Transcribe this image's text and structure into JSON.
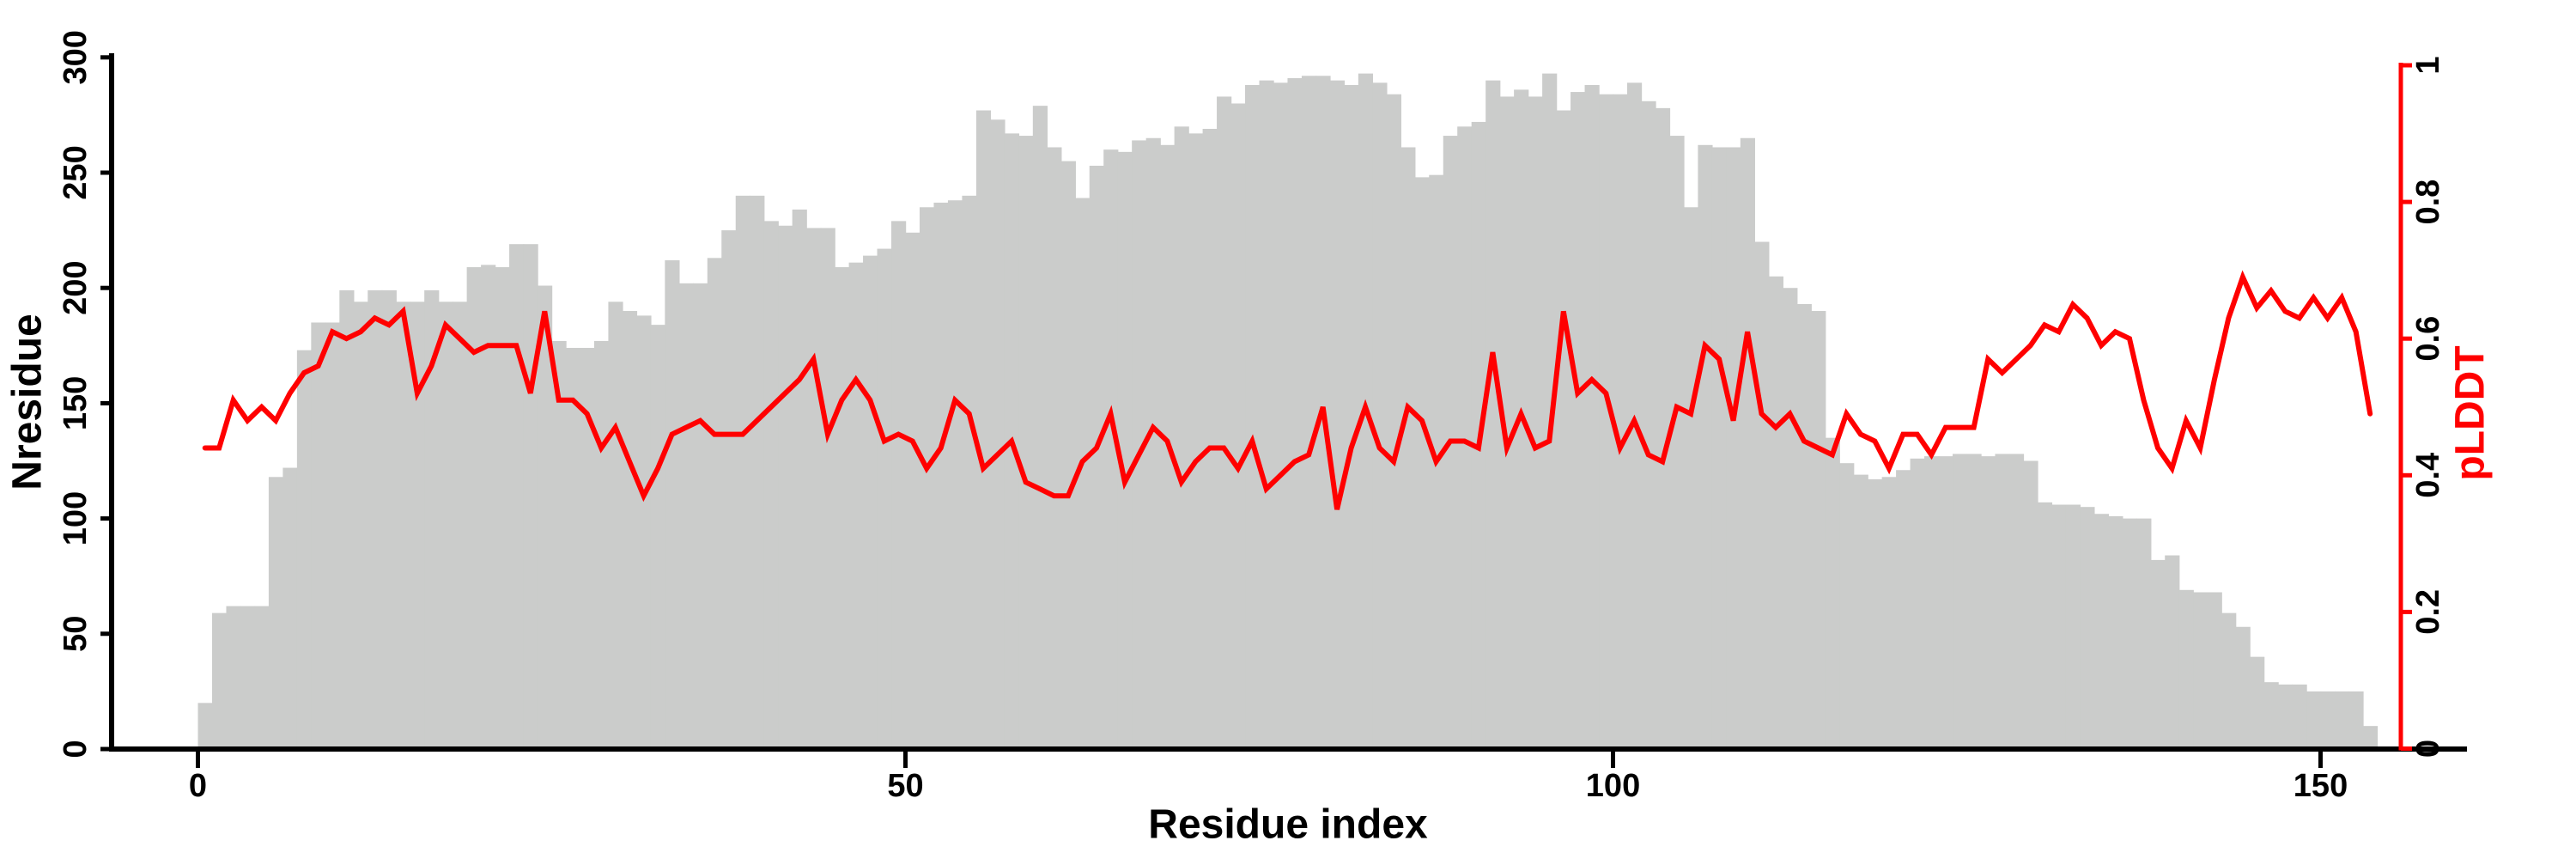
{
  "figure": {
    "xlabel": "Residue index",
    "ylabel_left": "Nresidue",
    "ylabel_right": "pLDDT",
    "colors": {
      "bar": "#cbcccb",
      "line": "#ff0000",
      "axis": "#000000",
      "background": "#ffffff"
    }
  },
  "chart_data": {
    "type": "bar+line",
    "title": "",
    "xlabel": "Residue index",
    "ylabel_left": "Nresidue",
    "ylabel_right": "pLDDT",
    "x_start": 1,
    "n_points": 154,
    "xlim": [
      0,
      154
    ],
    "ylim_left": [
      0,
      300
    ],
    "ylim_right": [
      0,
      1
    ],
    "x_ticks": [
      0,
      50,
      100,
      150
    ],
    "y_ticks_left": [
      0,
      50,
      100,
      150,
      200,
      250,
      300
    ],
    "y_ticks_right": [
      "0",
      "0.2",
      "0.4",
      "0.6",
      "0.8",
      "1"
    ],
    "grid": false,
    "legend": "none",
    "series": [
      {
        "name": "Nresidue",
        "type": "bar",
        "axis": "left",
        "color": "#cbcccb",
        "values": [
          20,
          59,
          62,
          62,
          62,
          118,
          122,
          173,
          185,
          185,
          199,
          194,
          199,
          199,
          194,
          194,
          199,
          194,
          194,
          209,
          210,
          209,
          219,
          219,
          201,
          177,
          174,
          174,
          177,
          194,
          190,
          188,
          184,
          212,
          202,
          202,
          213,
          225,
          240,
          240,
          229,
          227,
          234,
          226,
          226,
          209,
          211,
          214,
          217,
          229,
          224,
          235,
          237,
          238,
          240,
          277,
          273,
          267,
          266,
          279,
          261,
          255,
          239,
          253,
          260,
          259,
          264,
          265,
          262,
          270,
          267,
          269,
          283,
          280,
          288,
          290,
          289,
          291,
          292,
          292,
          290,
          288,
          293,
          289,
          284,
          261,
          248,
          249,
          266,
          270,
          272,
          290,
          283,
          286,
          283,
          293,
          277,
          285,
          288,
          284,
          284,
          289,
          281,
          278,
          266,
          235,
          262,
          261,
          261,
          265,
          220,
          205,
          200,
          193,
          190,
          135,
          124,
          119,
          117,
          118,
          121,
          126,
          127,
          127,
          128,
          128,
          127,
          128,
          128,
          125,
          107,
          106,
          106,
          105,
          102,
          101,
          100,
          100,
          82,
          84,
          69,
          68,
          68,
          59,
          53,
          40,
          29,
          28,
          28,
          25,
          25,
          25,
          25,
          10
        ]
      },
      {
        "name": "pLDDT",
        "type": "line",
        "axis": "right",
        "color": "#ff0000",
        "values": [
          0.44,
          0.44,
          0.51,
          0.48,
          0.5,
          0.48,
          0.52,
          0.55,
          0.56,
          0.61,
          0.6,
          0.61,
          0.63,
          0.62,
          0.64,
          0.52,
          0.56,
          0.62,
          0.6,
          0.58,
          0.59,
          0.59,
          0.59,
          0.52,
          0.64,
          0.51,
          0.51,
          0.49,
          0.44,
          0.47,
          0.42,
          0.37,
          0.41,
          0.46,
          0.47,
          0.48,
          0.46,
          0.46,
          0.46,
          0.48,
          0.5,
          0.52,
          0.54,
          0.57,
          0.46,
          0.51,
          0.54,
          0.51,
          0.45,
          0.46,
          0.45,
          0.41,
          0.44,
          0.51,
          0.49,
          0.41,
          0.43,
          0.45,
          0.39,
          0.38,
          0.37,
          0.37,
          0.42,
          0.44,
          0.49,
          0.39,
          0.43,
          0.47,
          0.45,
          0.39,
          0.42,
          0.44,
          0.44,
          0.41,
          0.45,
          0.38,
          0.4,
          0.42,
          0.43,
          0.5,
          0.35,
          0.44,
          0.5,
          0.44,
          0.42,
          0.5,
          0.48,
          0.42,
          0.45,
          0.45,
          0.44,
          0.58,
          0.44,
          0.49,
          0.44,
          0.45,
          0.64,
          0.52,
          0.54,
          0.52,
          0.44,
          0.48,
          0.43,
          0.42,
          0.5,
          0.49,
          0.59,
          0.57,
          0.48,
          0.61,
          0.49,
          0.47,
          0.49,
          0.45,
          0.44,
          0.43,
          0.49,
          0.46,
          0.45,
          0.41,
          0.46,
          0.46,
          0.43,
          0.47,
          0.47,
          0.47,
          0.57,
          0.55,
          0.57,
          0.59,
          0.62,
          0.61,
          0.65,
          0.63,
          0.59,
          0.61,
          0.6,
          0.51,
          0.44,
          0.41,
          0.48,
          0.44,
          0.54,
          0.63,
          0.69,
          0.645,
          0.67,
          0.64,
          0.63,
          0.66,
          0.63,
          0.66,
          0.61,
          0.49
        ]
      }
    ]
  }
}
